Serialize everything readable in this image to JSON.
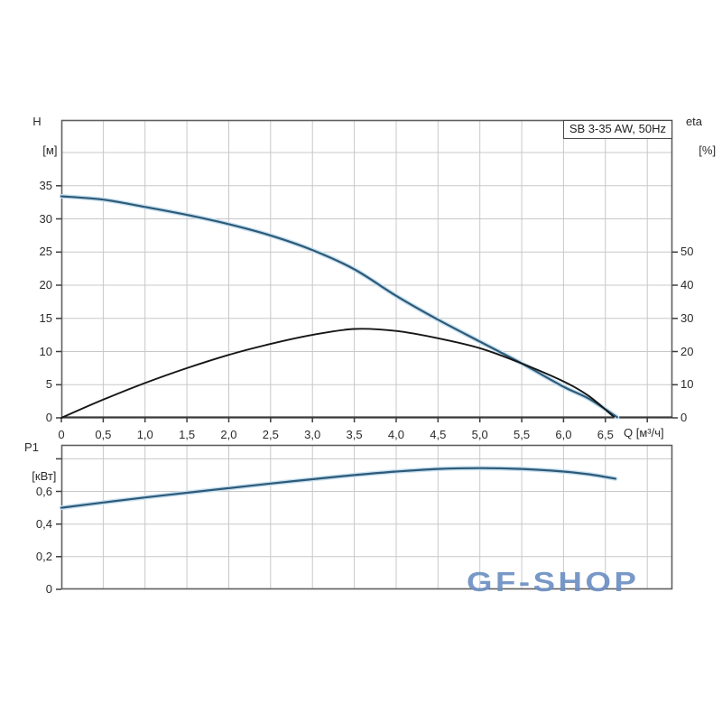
{
  "header": {
    "title_box": "SB 3-35 AW, 50Hz"
  },
  "labels": {
    "h_axis_name": "H",
    "h_axis_unit": "[м]",
    "eta_axis_name": "eta",
    "eta_axis_unit": "[%]",
    "q_axis": "Q [м³/ч]",
    "p1_axis_name": "P1",
    "p1_axis_unit": "[кВт]"
  },
  "watermark": {
    "text": "GF-SHOP",
    "color": "#6e91c3"
  },
  "colors": {
    "curve_blue": "#2d5a78",
    "curve_blue_halo": "#c8e0f0",
    "curve_black": "#161616",
    "grid": "#c8c8c8",
    "frame": "#5f5f5f",
    "axis_line": "#3a3a3a",
    "tick": "#3d3d3d",
    "text": "#2b2b2b"
  },
  "chart_data": [
    {
      "type": "line",
      "title": "SB 3-35 AW, 50Hz",
      "xlabel": "Q [м³/ч]",
      "x_range": [
        0,
        7.3
      ],
      "x_gridstep": 0.5,
      "grid": true,
      "legend": "none",
      "x_ticks": [
        {
          "v": 0,
          "t": "0"
        },
        {
          "v": 0.5,
          "t": "0,5"
        },
        {
          "v": 1,
          "t": "1,0"
        },
        {
          "v": 1.5,
          "t": "1,5"
        },
        {
          "v": 2,
          "t": "2,0"
        },
        {
          "v": 2.5,
          "t": "2,5"
        },
        {
          "v": 3,
          "t": "3,0"
        },
        {
          "v": 3.5,
          "t": "3,5"
        },
        {
          "v": 4,
          "t": "4,0"
        },
        {
          "v": 4.5,
          "t": "4,5"
        },
        {
          "v": 5,
          "t": "5,0"
        },
        {
          "v": 5.5,
          "t": "5,5"
        },
        {
          "v": 6,
          "t": "6,0"
        },
        {
          "v": 6.5,
          "t": "6,5"
        },
        {
          "v": 7,
          "t": ""
        }
      ],
      "y_left": {
        "label": "H [м]",
        "range": [
          0,
          44.9
        ],
        "gridstep": 5,
        "ticks": [
          {
            "v": 0,
            "t": "0"
          },
          {
            "v": 5,
            "t": "5"
          },
          {
            "v": 10,
            "t": "10"
          },
          {
            "v": 15,
            "t": "15"
          },
          {
            "v": 20,
            "t": "20"
          },
          {
            "v": 25,
            "t": "25"
          },
          {
            "v": 30,
            "t": "30"
          },
          {
            "v": 35,
            "t": "35"
          }
        ]
      },
      "y_right": {
        "label": "eta [%]",
        "range": [
          0,
          89.8
        ],
        "ticks": [
          {
            "v": 0,
            "t": "0"
          },
          {
            "v": 10,
            "t": "10"
          },
          {
            "v": 20,
            "t": "20"
          },
          {
            "v": 30,
            "t": "30"
          },
          {
            "v": 40,
            "t": "40"
          },
          {
            "v": 50,
            "t": "50"
          }
        ]
      },
      "series": [
        {
          "name": "H",
          "axis": "left",
          "color_role": "blue",
          "points": [
            [
              0,
              33.4
            ],
            [
              0.5,
              32.9
            ],
            [
              1,
              31.8
            ],
            [
              1.5,
              30.6
            ],
            [
              2,
              29.2
            ],
            [
              2.5,
              27.5
            ],
            [
              3,
              25.3
            ],
            [
              3.5,
              22.4
            ],
            [
              4,
              18.4
            ],
            [
              4.5,
              14.8
            ],
            [
              5,
              11.5
            ],
            [
              5.5,
              8.2
            ],
            [
              6,
              4.7
            ],
            [
              6.3,
              2.9
            ],
            [
              6.64,
              0.1
            ]
          ]
        },
        {
          "name": "eta",
          "axis": "right",
          "color_role": "black",
          "points": [
            [
              0,
              0
            ],
            [
              0.5,
              5.5
            ],
            [
              1,
              10.5
            ],
            [
              1.5,
              15
            ],
            [
              2,
              19
            ],
            [
              2.5,
              22.3
            ],
            [
              3,
              25
            ],
            [
              3.5,
              26.8
            ],
            [
              4,
              26.2
            ],
            [
              4.5,
              24
            ],
            [
              5,
              21
            ],
            [
              5.5,
              16.4
            ],
            [
              6,
              11
            ],
            [
              6.3,
              6.6
            ],
            [
              6.6,
              0.3
            ]
          ]
        }
      ]
    },
    {
      "type": "line",
      "title": "",
      "xlabel": "",
      "x_range": [
        0,
        7.3
      ],
      "x_gridstep": 0.5,
      "grid": true,
      "legend": "none",
      "x_ticks": [],
      "y_left": {
        "label": "P1 [кВт]",
        "range": [
          0,
          0.885
        ],
        "gridstep": 0.2,
        "ticks": [
          {
            "v": 0,
            "t": "0"
          },
          {
            "v": 0.2,
            "t": "0,2"
          },
          {
            "v": 0.4,
            "t": "0,4"
          },
          {
            "v": 0.6,
            "t": "0,6"
          },
          {
            "v": 0.8,
            "t": ""
          }
        ]
      },
      "series": [
        {
          "name": "P1",
          "axis": "left",
          "color_role": "blue",
          "points": [
            [
              0,
              0.5
            ],
            [
              0.5,
              0.532
            ],
            [
              1,
              0.563
            ],
            [
              1.5,
              0.592
            ],
            [
              2,
              0.62
            ],
            [
              2.5,
              0.648
            ],
            [
              3,
              0.675
            ],
            [
              3.5,
              0.7
            ],
            [
              4,
              0.722
            ],
            [
              4.5,
              0.738
            ],
            [
              5,
              0.743
            ],
            [
              5.5,
              0.738
            ],
            [
              6,
              0.722
            ],
            [
              6.3,
              0.705
            ],
            [
              6.62,
              0.678
            ]
          ]
        }
      ]
    }
  ]
}
